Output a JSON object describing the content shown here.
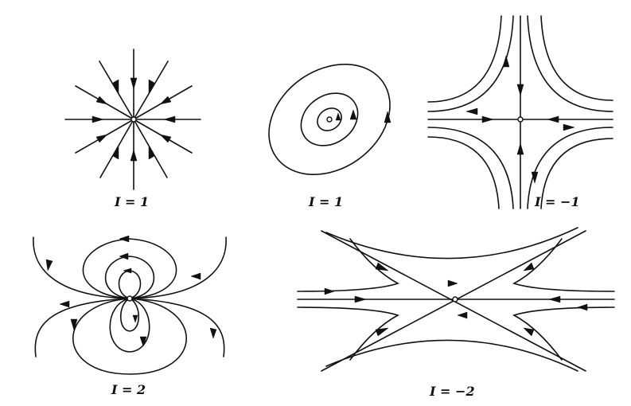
{
  "figure": {
    "panels": [
      {
        "id": "source",
        "label": "I = 1"
      },
      {
        "id": "center",
        "label": "I = 1"
      },
      {
        "id": "saddle",
        "label": "I = −1"
      },
      {
        "id": "dipole",
        "label": "I = 2"
      },
      {
        "id": "monkey-saddle",
        "label": "I = −2"
      }
    ]
  }
}
